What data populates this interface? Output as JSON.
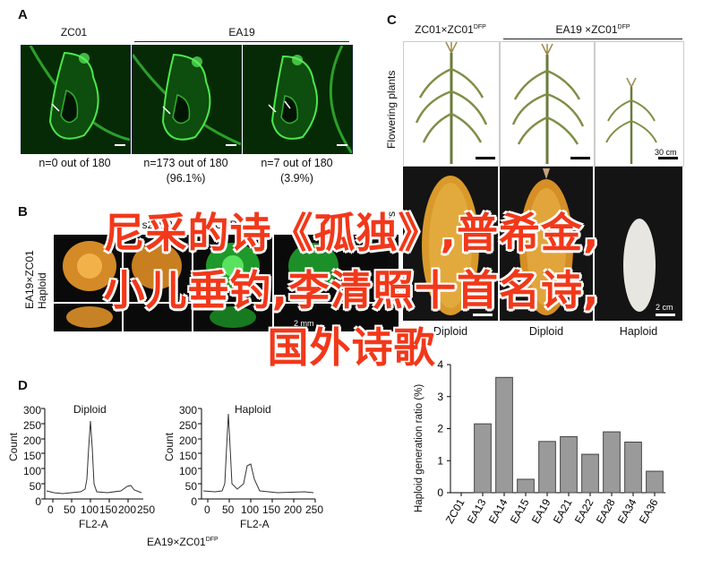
{
  "panel_a": {
    "label": "A",
    "group1": "ZC01",
    "group2": "EA19",
    "captions": [
      {
        "line1": "n=0 out of 180",
        "line2": ""
      },
      {
        "line1": "n=173 out of 180",
        "line2": "(96.1%)"
      },
      {
        "line1": "n=7 out of 180",
        "line2": "(3.9%)"
      }
    ]
  },
  "panel_b": {
    "label": "B",
    "side_label_1": "EA19×ZC01",
    "side_label_2": "Haploid",
    "header_fragment": "Ds2cD2",
    "header_gfp": "GFP",
    "scale": "2 mm"
  },
  "panel_c": {
    "label": "C",
    "header1": "ZC01×ZC01",
    "header1_sup": "DFP",
    "header2": "EA19 ×ZC01",
    "header2_sup": "DFP",
    "row1_label": "Flowering plants",
    "row2_label": "Mature ears",
    "scale_plants": "30 cm",
    "scale_ears": "2 cm",
    "columns": [
      "Diploid",
      "Diploid",
      "Haploid"
    ]
  },
  "panel_d": {
    "label": "D",
    "plot1_title": "Diploid",
    "plot2_title": "Haploid",
    "ylabel": "Count",
    "xlabel": "FL2-A",
    "yticks": [
      "0",
      "50",
      "100",
      "150",
      "200",
      "250",
      "300"
    ],
    "xticks1": [
      "0",
      "50",
      "100",
      "150",
      "200",
      "250"
    ],
    "xticks2": [
      "0",
      "50",
      "100",
      "150",
      "200",
      "250"
    ],
    "footer": "EA19×ZC01",
    "footer_sup": "DFP"
  },
  "overlay": {
    "line1": "尼采的诗《孤独》,普希金,",
    "line2": "小儿垂钓,李清照十首名诗,",
    "line3": "国外诗歌"
  },
  "chart_data": {
    "type": "bar",
    "categories": [
      "ZC01",
      "EA13",
      "EA14",
      "EA15",
      "EA19",
      "EA21",
      "EA22",
      "EA28",
      "EA34",
      "EA36"
    ],
    "values": [
      0,
      2.15,
      3.6,
      0.42,
      1.6,
      1.75,
      1.2,
      1.9,
      1.58,
      0.67
    ],
    "ylabel": "Haploid generation ratio (%)",
    "yticks": [
      "0",
      "1",
      "2",
      "3",
      "4"
    ],
    "ylim": [
      0,
      4
    ],
    "color": "#9a9a9a"
  }
}
